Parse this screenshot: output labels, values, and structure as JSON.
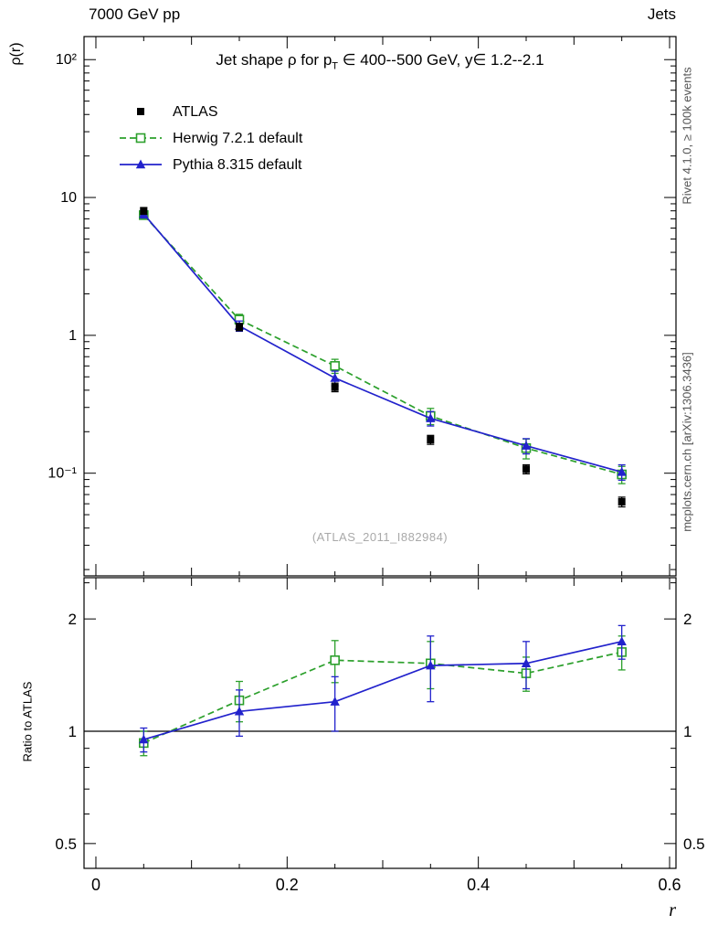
{
  "header": {
    "left": "7000 GeV pp",
    "right": "Jets"
  },
  "side": {
    "rivet": "Rivet 4.1.0, ≥ 100k events",
    "mcplots": "mcplots.cern.ch [arXiv:1306.3436]"
  },
  "watermark": "(ATLAS_2011_I882984)",
  "labels": {
    "y_main": "ρ(r)",
    "y_ratio": "Ratio to ATLAS",
    "x": "r"
  },
  "title": {
    "prefix": "Jet shape ρ for p",
    "sub": "T",
    "suffix": " ∈ 400--500 GeV, y∈ 1.2--2.1"
  },
  "chart_data": {
    "type": "line",
    "description": "Jet shape rho(r) data/MC comparison with log y-axes and ratio panel",
    "x": [
      0.05,
      0.15,
      0.25,
      0.35,
      0.45,
      0.55
    ],
    "series": [
      {
        "name": "ATLAS",
        "marker": "square-filled",
        "color": "#000000",
        "line": "none",
        "values": [
          8.0,
          1.15,
          0.42,
          0.175,
          0.107,
          0.062
        ],
        "errors": [
          0.45,
          0.07,
          0.03,
          0.013,
          0.008,
          0.005
        ]
      },
      {
        "name": "Herwig 7.2.1 default",
        "marker": "square-open",
        "color": "#2ca02c",
        "line": "dashed",
        "values": [
          7.45,
          1.3,
          0.6,
          0.26,
          0.152,
          0.098
        ],
        "errors": [
          0.5,
          0.12,
          0.07,
          0.035,
          0.025,
          0.014
        ],
        "ratio": [
          0.93,
          1.21,
          1.55,
          1.52,
          1.43,
          1.63
        ],
        "ratio_errors": [
          0.07,
          0.15,
          0.2,
          0.22,
          0.15,
          0.17
        ]
      },
      {
        "name": "Pythia 8.315 default",
        "marker": "triangle-filled",
        "color": "#2222cc",
        "line": "solid",
        "values": [
          7.6,
          1.17,
          0.49,
          0.25,
          0.158,
          0.102
        ],
        "errors": [
          0.5,
          0.1,
          0.06,
          0.03,
          0.02,
          0.013
        ],
        "ratio": [
          0.95,
          1.13,
          1.2,
          1.5,
          1.52,
          1.74
        ],
        "ratio_errors": [
          0.07,
          0.16,
          0.2,
          0.3,
          0.22,
          0.18
        ]
      }
    ],
    "axes": {
      "x": {
        "min": -0.0124,
        "max": 0.6067,
        "major": [
          0,
          0.2,
          0.4,
          0.6
        ],
        "major_labels": [
          "0",
          "0.2",
          "0.4",
          "0.6"
        ],
        "label": "r"
      },
      "y_main": {
        "scale": "log",
        "min": 0.018,
        "max": 147,
        "ticks": [
          {
            "v": 100,
            "label": "10²"
          },
          {
            "v": 10,
            "label": "10"
          },
          {
            "v": 1,
            "label": "1"
          },
          {
            "v": 0.1,
            "label": "10⁻¹"
          }
        ]
      },
      "y_ratio": {
        "scale": "log",
        "min": 0.429,
        "max": 2.58,
        "ticks": [
          {
            "v": 2,
            "label": "2"
          },
          {
            "v": 1,
            "label": "1"
          },
          {
            "v": 0.5,
            "label": "0.5"
          }
        ],
        "minor": [
          0.6,
          0.7,
          0.8,
          0.9,
          2.5
        ]
      }
    },
    "ratio_reference": 1,
    "legend_position": "top-left",
    "grid": false
  }
}
